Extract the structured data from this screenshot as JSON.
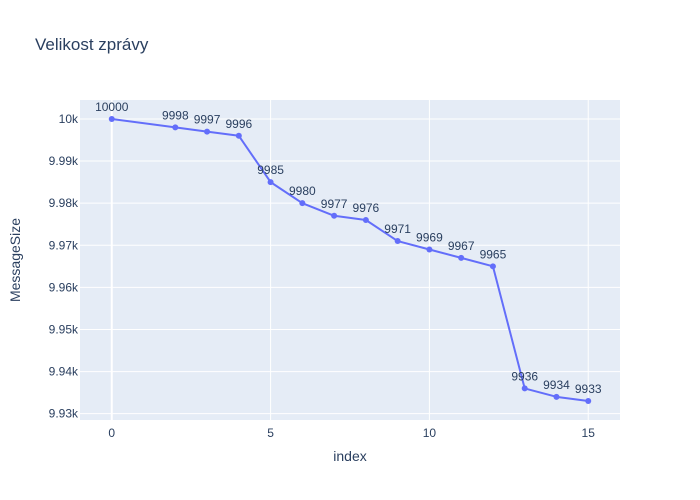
{
  "chart_data": {
    "type": "line",
    "title": "Velikost zprávy",
    "xlabel": "index",
    "ylabel": "MessageSize",
    "xlim": [
      -1,
      16
    ],
    "ylim": [
      9928.5,
      10004.5
    ],
    "x_ticks": [
      0,
      5,
      10,
      15
    ],
    "x_tick_labels": [
      "0",
      "5",
      "10",
      "15"
    ],
    "y_ticks": [
      9930,
      9940,
      9950,
      9960,
      9970,
      9980,
      9990,
      10000
    ],
    "y_tick_labels": [
      "9.93k",
      "9.94k",
      "9.95k",
      "9.96k",
      "9.97k",
      "9.98k",
      "9.99k",
      "10k"
    ],
    "grid": true,
    "series": [
      {
        "x": [
          0,
          2,
          3,
          4,
          5,
          6,
          7,
          8,
          9,
          10,
          11,
          12,
          13,
          14,
          15
        ],
        "values": [
          10000,
          9998,
          9997,
          9996,
          9985,
          9980,
          9977,
          9976,
          9971,
          9969,
          9967,
          9965,
          9936,
          9934,
          9933
        ],
        "labels": [
          "10000",
          "9998",
          "9997",
          "9996",
          "9985",
          "9980",
          "9977",
          "9976",
          "9971",
          "9969",
          "9967",
          "9965",
          "9936",
          "9934",
          "9933"
        ],
        "color": "#636efa"
      }
    ],
    "plot_bg": "#e5ecf6"
  }
}
